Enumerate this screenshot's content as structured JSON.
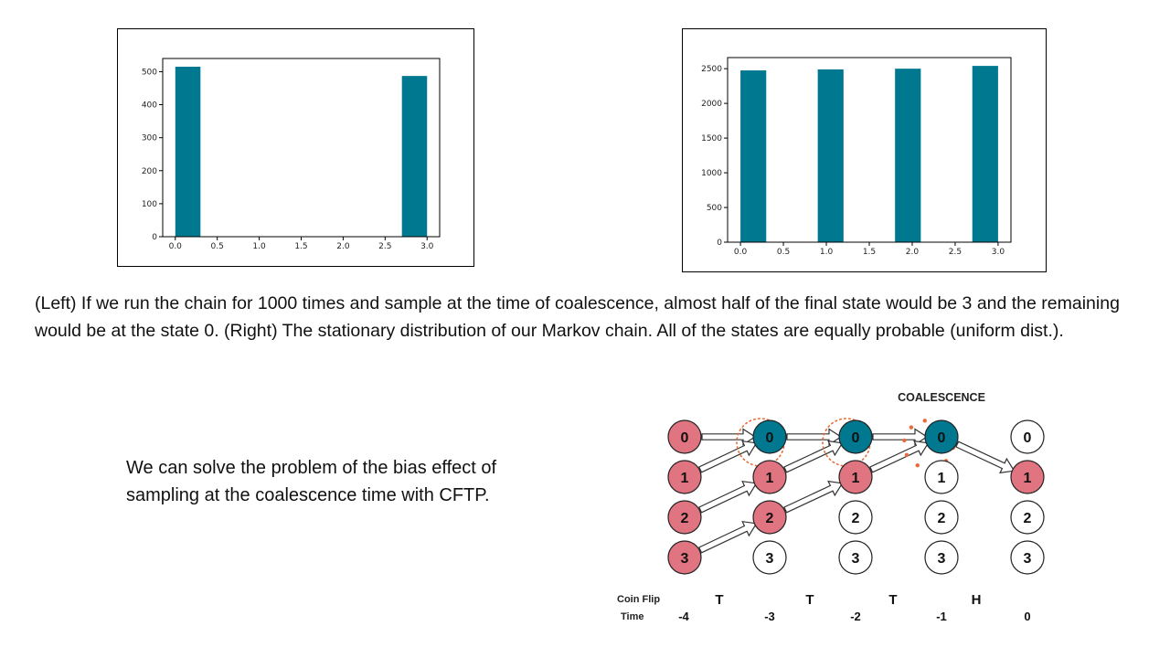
{
  "colors": {
    "bar": "#007890",
    "pink": "#e07480",
    "teal": "#007890",
    "dots": "#e86a3a"
  },
  "chart_data": [
    {
      "type": "bar",
      "title": "",
      "xlabel": "",
      "ylabel": "",
      "bars": [
        {
          "x_start": 0.0,
          "x_end": 0.3,
          "value": 515
        },
        {
          "x_start": 2.7,
          "x_end": 3.0,
          "value": 487
        }
      ],
      "xlim": [
        -0.15,
        3.15
      ],
      "ylim": [
        0,
        540
      ],
      "xticks": [
        0.0,
        0.5,
        1.0,
        1.5,
        2.0,
        2.5,
        3.0
      ],
      "xtick_labels": [
        "0.0",
        "0.5",
        "1.0",
        "1.5",
        "2.0",
        "2.5",
        "3.0"
      ],
      "yticks": [
        0,
        100,
        200,
        300,
        400,
        500
      ],
      "ytick_labels": [
        "0",
        "100",
        "200",
        "300",
        "400",
        "500"
      ],
      "grid": false
    },
    {
      "type": "bar",
      "title": "",
      "xlabel": "",
      "ylabel": "",
      "bars": [
        {
          "x_start": 0.0,
          "x_end": 0.3,
          "value": 2475
        },
        {
          "x_start": 0.9,
          "x_end": 1.2,
          "value": 2490
        },
        {
          "x_start": 1.8,
          "x_end": 2.1,
          "value": 2500
        },
        {
          "x_start": 2.7,
          "x_end": 3.0,
          "value": 2540
        }
      ],
      "xlim": [
        -0.15,
        3.15
      ],
      "ylim": [
        0,
        2660
      ],
      "xticks": [
        0.0,
        0.5,
        1.0,
        1.5,
        2.0,
        2.5,
        3.0
      ],
      "xtick_labels": [
        "0.0",
        "0.5",
        "1.0",
        "1.5",
        "2.0",
        "2.5",
        "3.0"
      ],
      "yticks": [
        0,
        500,
        1000,
        1500,
        2000,
        2500
      ],
      "ytick_labels": [
        "0",
        "500",
        "1000",
        "1500",
        "2000",
        "2500"
      ],
      "grid": false
    }
  ],
  "caption": "(Left) If we run the chain for 1000 times and sample at the time of coalescence, almost half of the final state would be 3 and the remaining would be at the state 0. (Right) The stationary distribution of our Markov chain. All of the states are equally probable (uniform dist.).",
  "side_text": "We can solve the problem of the bias effect of sampling at the coalescence time with CFTP.",
  "diagram": {
    "coalescence_label": "COALESCENCE",
    "coin_flip_label": "Coin Flip",
    "time_label": "Time",
    "coin_flips": [
      "T",
      "T",
      "T",
      "H"
    ],
    "times": [
      "-4",
      "-3",
      "-2",
      "-1",
      "0"
    ],
    "state_labels": [
      "0",
      "1",
      "2",
      "3"
    ],
    "node_fill": [
      [
        "pink",
        "pink",
        "pink",
        "pink"
      ],
      [
        "teal",
        "pink",
        "pink",
        "white"
      ],
      [
        "teal",
        "pink",
        "white",
        "white"
      ],
      [
        "teal",
        "white",
        "white",
        "white"
      ],
      [
        "white",
        "pink",
        "white",
        "white"
      ]
    ],
    "transitions": [
      {
        "from_col": 0,
        "from_state": 0,
        "to_state": 0
      },
      {
        "from_col": 0,
        "from_state": 1,
        "to_state": 0
      },
      {
        "from_col": 0,
        "from_state": 2,
        "to_state": 1
      },
      {
        "from_col": 0,
        "from_state": 3,
        "to_state": 2
      },
      {
        "from_col": 1,
        "from_state": 0,
        "to_state": 0
      },
      {
        "from_col": 1,
        "from_state": 1,
        "to_state": 0
      },
      {
        "from_col": 1,
        "from_state": 2,
        "to_state": 1
      },
      {
        "from_col": 2,
        "from_state": 0,
        "to_state": 0
      },
      {
        "from_col": 2,
        "from_state": 1,
        "to_state": 0
      },
      {
        "from_col": 3,
        "from_state": 0,
        "to_state": 1
      }
    ]
  }
}
